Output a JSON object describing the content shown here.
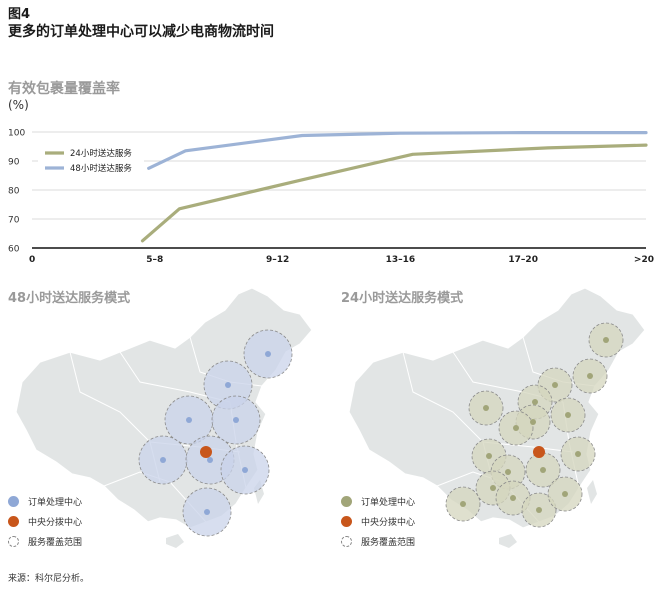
{
  "figure": {
    "label": "图4",
    "title": "更多的订单处理中心可以减少电商物流时间",
    "source": "来源：科尔尼分析。"
  },
  "chart_data": {
    "type": "line",
    "title": "有效包裹量覆盖率",
    "ylabel": "(%)",
    "categories": [
      "0",
      "5–8",
      "9–12",
      "13–16",
      "17–20",
      ">20"
    ],
    "ylim": [
      60,
      100
    ],
    "yticks": [
      60,
      70,
      80,
      90,
      100
    ],
    "grid": true,
    "legend_position": "top-left",
    "series": [
      {
        "name": "24小时送达服务",
        "color": "#a9ad7c",
        "points": [
          [
            0.9,
            62.5
          ],
          [
            1.2,
            73.5
          ],
          [
            2.2,
            83.5
          ],
          [
            3.1,
            92.3
          ],
          [
            4.2,
            94.5
          ],
          [
            5.0,
            95.5
          ]
        ]
      },
      {
        "name": "48小时送达服务",
        "color": "#9db3d6",
        "points": [
          [
            0.95,
            87.5
          ],
          [
            1.25,
            93.5
          ],
          [
            2.2,
            98.8
          ],
          [
            3.0,
            99.6
          ],
          [
            4.0,
            99.8
          ],
          [
            5.0,
            99.8
          ]
        ]
      }
    ]
  },
  "panels": [
    {
      "title": "48小时送达服务模式",
      "legend": [
        "订单处理中心",
        "中央分拨中心",
        "服务覆盖范围"
      ]
    },
    {
      "title": "24小时送达服务模式",
      "legend": [
        "订单处理中心",
        "中央分拨中心",
        "服务覆盖范围"
      ]
    }
  ],
  "colors": {
    "map_fill": "#e2e5e5",
    "map_border": "#ffffff",
    "hub_orange": "#c8561b",
    "blue_center": "#8fa8d6",
    "blue_ring": "#c9d3ea",
    "green_center": "#a1a579",
    "green_ring": "#d4d5bd"
  }
}
